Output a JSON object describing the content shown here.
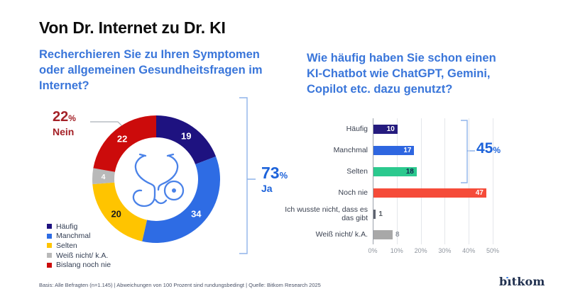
{
  "title": "Von Dr. Internet zu Dr. KI",
  "footer": "Basis: Alle Befragten (n=1.145) | Abweichungen von 100 Prozent sind rundungsbedingt | Quelle: Bitkom Research 2025",
  "logo": {
    "part1": "b",
    "part2": "ıtkom"
  },
  "colors": {
    "accent_blue": "#1d63da",
    "question_blue": "#3a76da",
    "dark_red": "#a42127",
    "bracket_blue": "#8fb3ea"
  },
  "chart_data": [
    {
      "type": "pie",
      "subtype": "donut",
      "question_lines": [
        "Recherchieren Sie zu Ihren Symptomen",
        "oder allgemeinen Gesundheitsfragen im",
        "Internet?"
      ],
      "segments": [
        {
          "label": "Häufig",
          "value": 19,
          "color": "#1e1280",
          "value_color": "#ffffff"
        },
        {
          "label": "Manchmal",
          "value": 34,
          "color": "#2e6ce4",
          "value_color": "#ffffff"
        },
        {
          "label": "Selten",
          "value": 20,
          "color": "#ffc400",
          "value_color": "#1a1a1a"
        },
        {
          "label": "Weiß nicht/ k.A.",
          "value": 4,
          "color": "#b9b9b9",
          "value_color": "#ffffff"
        },
        {
          "label": "Bislang noch nie",
          "value": 22,
          "color": "#cc0b0b",
          "value_color": "#ffffff"
        }
      ],
      "center_icon": "stethoscope",
      "legend_position": "bottom-left",
      "callouts": {
        "nein": {
          "value": "22",
          "unit": "%",
          "label": "Nein"
        },
        "ja": {
          "value": "73",
          "unit": "%",
          "label": "Ja"
        }
      }
    },
    {
      "type": "bar",
      "orientation": "horizontal",
      "question_lines": [
        "Wie häufig haben Sie schon einen",
        "KI-Chatbot wie ChatGPT, Gemini,",
        "Copilot etc. dazu genutzt?"
      ],
      "bars": [
        {
          "label": "Häufig",
          "value": 10,
          "color": "#251b7e",
          "value_color": "#ffffff",
          "value_inside": true
        },
        {
          "label": "Manchmal",
          "value": 17,
          "color": "#2e66e0",
          "value_color": "#ffffff",
          "value_inside": true
        },
        {
          "label": "Selten",
          "value": 18,
          "color": "#2bc98e",
          "value_color": "#13264e",
          "value_inside": true
        },
        {
          "label": "Noch nie",
          "value": 47,
          "color": "#f54b39",
          "value_color": "#ffffff",
          "value_inside": true
        },
        {
          "label": "Ich wusste nicht, dass es\ndas gibt",
          "value": 1,
          "color": "#5f6470",
          "value_color": "#565b63",
          "value_inside": false
        },
        {
          "label": "Weiß nicht/ k.A.",
          "value": 8,
          "color": "#a8a8a8",
          "value_color": "#8f959e",
          "value_inside": false
        }
      ],
      "x_ticks": [
        "0%",
        "10%",
        "20%",
        "30%",
        "40%",
        "50%"
      ],
      "xlim": [
        0,
        50
      ],
      "grid": true,
      "bracket_callout": {
        "value": "45",
        "unit": "%"
      }
    }
  ]
}
